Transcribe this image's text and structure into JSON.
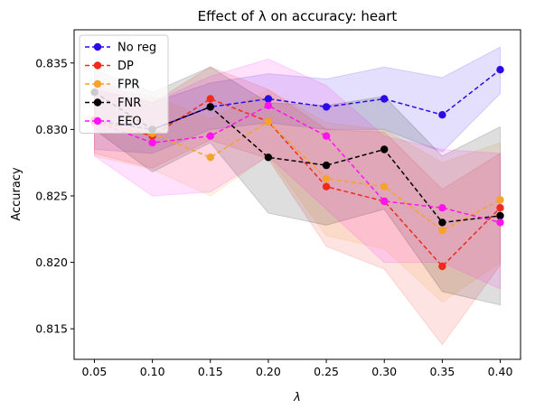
{
  "chart_data": {
    "type": "line",
    "title": "Effect of λ on accuracy: heart",
    "xlabel": "λ",
    "ylabel": "Accuracy",
    "x": [
      0.05,
      0.1,
      0.15,
      0.2,
      0.25,
      0.3,
      0.35,
      0.4
    ],
    "x_ticks": [
      "0.05",
      "0.10",
      "0.15",
      "0.20",
      "0.25",
      "0.30",
      "0.35",
      "0.40"
    ],
    "y_ticks": [
      "0.815",
      "0.820",
      "0.825",
      "0.830",
      "0.835"
    ],
    "y_tick_values": [
      0.815,
      0.82,
      0.825,
      0.83,
      0.835
    ],
    "xlim": [
      0.0325,
      0.4175
    ],
    "ylim": [
      0.8127,
      0.8375
    ],
    "grid": false,
    "legend_position": "top-left",
    "series": [
      {
        "name": "No reg",
        "color": "#2a0ae6",
        "values": [
          0.8307,
          0.83,
          0.8317,
          0.8323,
          0.8317,
          0.8323,
          0.8311,
          0.8345
        ],
        "lower": [
          0.8285,
          0.8282,
          0.83,
          0.8305,
          0.83,
          0.83,
          0.8283,
          0.8327
        ],
        "upper": [
          0.833,
          0.832,
          0.8335,
          0.8342,
          0.8338,
          0.8347,
          0.8339,
          0.8362
        ]
      },
      {
        "name": "DP",
        "color": "#f02a1d",
        "values": [
          0.8307,
          0.8295,
          0.8323,
          0.8306,
          0.8257,
          0.8246,
          0.8197,
          0.8241
        ],
        "lower": [
          0.8282,
          0.8271,
          0.8292,
          0.8278,
          0.8212,
          0.8195,
          0.8138,
          0.8198
        ],
        "upper": [
          0.833,
          0.832,
          0.8347,
          0.833,
          0.83,
          0.8298,
          0.8255,
          0.8282
        ]
      },
      {
        "name": "FPR",
        "color": "#f5a32a",
        "values": [
          0.8305,
          0.8297,
          0.8279,
          0.8306,
          0.8263,
          0.8257,
          0.8224,
          0.8247
        ],
        "lower": [
          0.828,
          0.827,
          0.825,
          0.828,
          0.822,
          0.821,
          0.817,
          0.82
        ],
        "upper": [
          0.8332,
          0.8325,
          0.8308,
          0.833,
          0.8305,
          0.83,
          0.8275,
          0.829
        ]
      },
      {
        "name": "FNR",
        "color": "#000000",
        "values": [
          0.8328,
          0.83,
          0.8317,
          0.8279,
          0.8273,
          0.8285,
          0.823,
          0.8235
        ],
        "lower": [
          0.83,
          0.8268,
          0.829,
          0.8237,
          0.8228,
          0.824,
          0.8178,
          0.8168
        ],
        "upper": [
          0.8345,
          0.8328,
          0.8347,
          0.832,
          0.8318,
          0.8325,
          0.828,
          0.8302
        ]
      },
      {
        "name": "EEO",
        "color": "#ff14f0",
        "values": [
          0.8306,
          0.829,
          0.8295,
          0.8318,
          0.8295,
          0.8246,
          0.8241,
          0.823
        ],
        "lower": [
          0.828,
          0.825,
          0.8253,
          0.828,
          0.824,
          0.82,
          0.82,
          0.818
        ],
        "upper": [
          0.8338,
          0.832,
          0.834,
          0.8353,
          0.8333,
          0.8295,
          0.8285,
          0.8282
        ]
      }
    ]
  }
}
